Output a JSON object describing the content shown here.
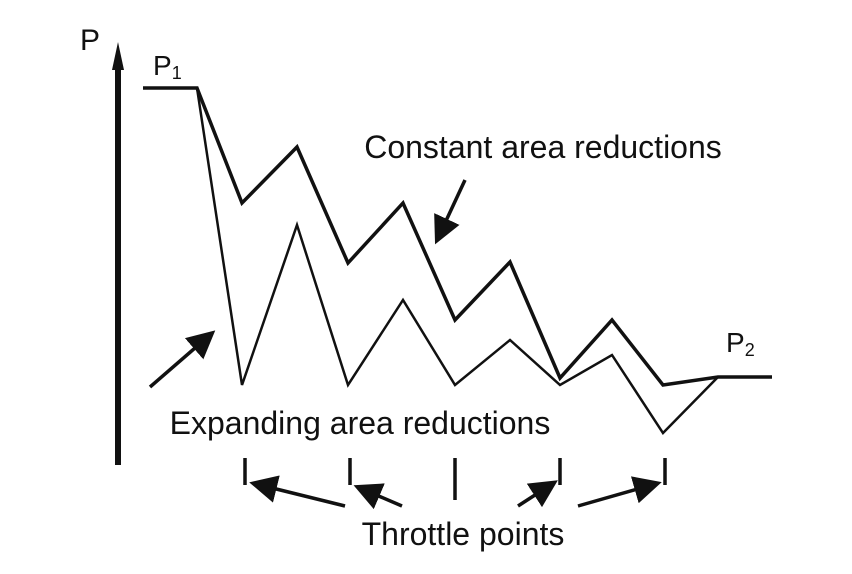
{
  "axis_label": "P",
  "start_label": {
    "main": "P",
    "sub": "1"
  },
  "end_label": {
    "main": "P",
    "sub": "2"
  },
  "constant_label": "Constant area reductions",
  "expanding_label": "Expanding area reductions",
  "throttle_label": "Throttle points"
}
